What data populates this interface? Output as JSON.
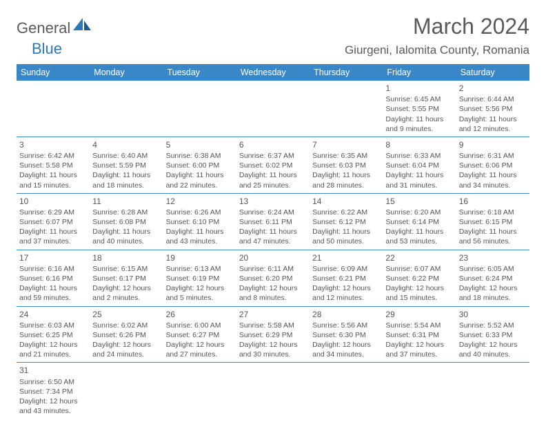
{
  "logo": {
    "part1": "General",
    "part2": "Blue"
  },
  "title": "March 2024",
  "location": "Giurgeni, Ialomita County, Romania",
  "colors": {
    "header_bg": "#3a87c7",
    "header_text": "#ffffff",
    "border": "#3a87c7",
    "text": "#555555",
    "logo_blue": "#2a78b8",
    "logo_gray": "#5a5a5a"
  },
  "day_headers": [
    "Sunday",
    "Monday",
    "Tuesday",
    "Wednesday",
    "Thursday",
    "Friday",
    "Saturday"
  ],
  "weeks": [
    [
      null,
      null,
      null,
      null,
      null,
      {
        "n": "1",
        "sr": "Sunrise: 6:45 AM",
        "ss": "Sunset: 5:55 PM",
        "d1": "Daylight: 11 hours",
        "d2": "and 9 minutes."
      },
      {
        "n": "2",
        "sr": "Sunrise: 6:44 AM",
        "ss": "Sunset: 5:56 PM",
        "d1": "Daylight: 11 hours",
        "d2": "and 12 minutes."
      }
    ],
    [
      {
        "n": "3",
        "sr": "Sunrise: 6:42 AM",
        "ss": "Sunset: 5:58 PM",
        "d1": "Daylight: 11 hours",
        "d2": "and 15 minutes."
      },
      {
        "n": "4",
        "sr": "Sunrise: 6:40 AM",
        "ss": "Sunset: 5:59 PM",
        "d1": "Daylight: 11 hours",
        "d2": "and 18 minutes."
      },
      {
        "n": "5",
        "sr": "Sunrise: 6:38 AM",
        "ss": "Sunset: 6:00 PM",
        "d1": "Daylight: 11 hours",
        "d2": "and 22 minutes."
      },
      {
        "n": "6",
        "sr": "Sunrise: 6:37 AM",
        "ss": "Sunset: 6:02 PM",
        "d1": "Daylight: 11 hours",
        "d2": "and 25 minutes."
      },
      {
        "n": "7",
        "sr": "Sunrise: 6:35 AM",
        "ss": "Sunset: 6:03 PM",
        "d1": "Daylight: 11 hours",
        "d2": "and 28 minutes."
      },
      {
        "n": "8",
        "sr": "Sunrise: 6:33 AM",
        "ss": "Sunset: 6:04 PM",
        "d1": "Daylight: 11 hours",
        "d2": "and 31 minutes."
      },
      {
        "n": "9",
        "sr": "Sunrise: 6:31 AM",
        "ss": "Sunset: 6:06 PM",
        "d1": "Daylight: 11 hours",
        "d2": "and 34 minutes."
      }
    ],
    [
      {
        "n": "10",
        "sr": "Sunrise: 6:29 AM",
        "ss": "Sunset: 6:07 PM",
        "d1": "Daylight: 11 hours",
        "d2": "and 37 minutes."
      },
      {
        "n": "11",
        "sr": "Sunrise: 6:28 AM",
        "ss": "Sunset: 6:08 PM",
        "d1": "Daylight: 11 hours",
        "d2": "and 40 minutes."
      },
      {
        "n": "12",
        "sr": "Sunrise: 6:26 AM",
        "ss": "Sunset: 6:10 PM",
        "d1": "Daylight: 11 hours",
        "d2": "and 43 minutes."
      },
      {
        "n": "13",
        "sr": "Sunrise: 6:24 AM",
        "ss": "Sunset: 6:11 PM",
        "d1": "Daylight: 11 hours",
        "d2": "and 47 minutes."
      },
      {
        "n": "14",
        "sr": "Sunrise: 6:22 AM",
        "ss": "Sunset: 6:12 PM",
        "d1": "Daylight: 11 hours",
        "d2": "and 50 minutes."
      },
      {
        "n": "15",
        "sr": "Sunrise: 6:20 AM",
        "ss": "Sunset: 6:14 PM",
        "d1": "Daylight: 11 hours",
        "d2": "and 53 minutes."
      },
      {
        "n": "16",
        "sr": "Sunrise: 6:18 AM",
        "ss": "Sunset: 6:15 PM",
        "d1": "Daylight: 11 hours",
        "d2": "and 56 minutes."
      }
    ],
    [
      {
        "n": "17",
        "sr": "Sunrise: 6:16 AM",
        "ss": "Sunset: 6:16 PM",
        "d1": "Daylight: 11 hours",
        "d2": "and 59 minutes."
      },
      {
        "n": "18",
        "sr": "Sunrise: 6:15 AM",
        "ss": "Sunset: 6:17 PM",
        "d1": "Daylight: 12 hours",
        "d2": "and 2 minutes."
      },
      {
        "n": "19",
        "sr": "Sunrise: 6:13 AM",
        "ss": "Sunset: 6:19 PM",
        "d1": "Daylight: 12 hours",
        "d2": "and 5 minutes."
      },
      {
        "n": "20",
        "sr": "Sunrise: 6:11 AM",
        "ss": "Sunset: 6:20 PM",
        "d1": "Daylight: 12 hours",
        "d2": "and 8 minutes."
      },
      {
        "n": "21",
        "sr": "Sunrise: 6:09 AM",
        "ss": "Sunset: 6:21 PM",
        "d1": "Daylight: 12 hours",
        "d2": "and 12 minutes."
      },
      {
        "n": "22",
        "sr": "Sunrise: 6:07 AM",
        "ss": "Sunset: 6:22 PM",
        "d1": "Daylight: 12 hours",
        "d2": "and 15 minutes."
      },
      {
        "n": "23",
        "sr": "Sunrise: 6:05 AM",
        "ss": "Sunset: 6:24 PM",
        "d1": "Daylight: 12 hours",
        "d2": "and 18 minutes."
      }
    ],
    [
      {
        "n": "24",
        "sr": "Sunrise: 6:03 AM",
        "ss": "Sunset: 6:25 PM",
        "d1": "Daylight: 12 hours",
        "d2": "and 21 minutes."
      },
      {
        "n": "25",
        "sr": "Sunrise: 6:02 AM",
        "ss": "Sunset: 6:26 PM",
        "d1": "Daylight: 12 hours",
        "d2": "and 24 minutes."
      },
      {
        "n": "26",
        "sr": "Sunrise: 6:00 AM",
        "ss": "Sunset: 6:27 PM",
        "d1": "Daylight: 12 hours",
        "d2": "and 27 minutes."
      },
      {
        "n": "27",
        "sr": "Sunrise: 5:58 AM",
        "ss": "Sunset: 6:29 PM",
        "d1": "Daylight: 12 hours",
        "d2": "and 30 minutes."
      },
      {
        "n": "28",
        "sr": "Sunrise: 5:56 AM",
        "ss": "Sunset: 6:30 PM",
        "d1": "Daylight: 12 hours",
        "d2": "and 34 minutes."
      },
      {
        "n": "29",
        "sr": "Sunrise: 5:54 AM",
        "ss": "Sunset: 6:31 PM",
        "d1": "Daylight: 12 hours",
        "d2": "and 37 minutes."
      },
      {
        "n": "30",
        "sr": "Sunrise: 5:52 AM",
        "ss": "Sunset: 6:33 PM",
        "d1": "Daylight: 12 hours",
        "d2": "and 40 minutes."
      }
    ],
    [
      {
        "n": "31",
        "sr": "Sunrise: 6:50 AM",
        "ss": "Sunset: 7:34 PM",
        "d1": "Daylight: 12 hours",
        "d2": "and 43 minutes."
      },
      null,
      null,
      null,
      null,
      null,
      null
    ]
  ]
}
